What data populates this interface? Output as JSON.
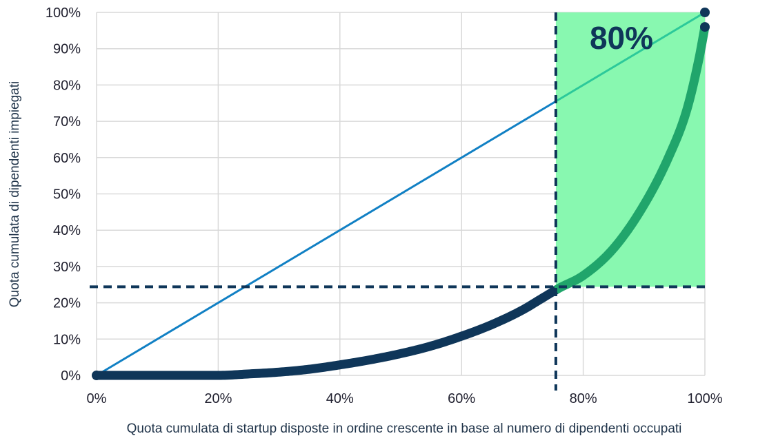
{
  "chart_data": {
    "type": "line",
    "xlabel": "Quota cumulata di startup disposte in ordine crescente in base al numero di dipendenti occupati",
    "ylabel": "Quota cumulata di dipendenti impiegati",
    "xlim": [
      0,
      100
    ],
    "ylim": [
      0,
      100
    ],
    "x_ticks": [
      "0%",
      "20%",
      "40%",
      "60%",
      "80%",
      "100%"
    ],
    "y_ticks": [
      "0%",
      "10%",
      "20%",
      "30%",
      "40%",
      "50%",
      "60%",
      "70%",
      "80%",
      "90%",
      "100%"
    ],
    "grid": true,
    "series": [
      {
        "kind": "equality-line",
        "x": [
          0,
          100
        ],
        "y": [
          0,
          100
        ]
      },
      {
        "kind": "concentration-curve",
        "x": [
          0,
          10,
          20,
          25,
          30,
          35,
          40,
          45,
          50,
          55,
          60,
          65,
          70,
          73,
          76,
          80,
          85,
          90,
          94,
          97,
          99,
          100
        ],
        "y": [
          0,
          0,
          0,
          0.4,
          0.9,
          1.7,
          2.9,
          4.3,
          6.0,
          8.1,
          10.8,
          14.0,
          18.0,
          21.0,
          24.0,
          27.5,
          35,
          47,
          60,
          73,
          87,
          96
        ]
      }
    ],
    "reference_lines": {
      "x": 75.5,
      "y": 24.4
    },
    "highlight_region": {
      "x": [
        75.5,
        100
      ],
      "y": [
        24.4,
        100
      ]
    },
    "annotation": "80%",
    "colors": {
      "equality_line": "#1180c4",
      "equality_line_in_region": "#2cc99a",
      "curve": "#0f3659",
      "curve_in_region": "#20a56b",
      "highlight": "#88f8b0",
      "reference": "#0f3659",
      "annotation": "#0f3659",
      "grid": "#d9d9d9"
    }
  }
}
